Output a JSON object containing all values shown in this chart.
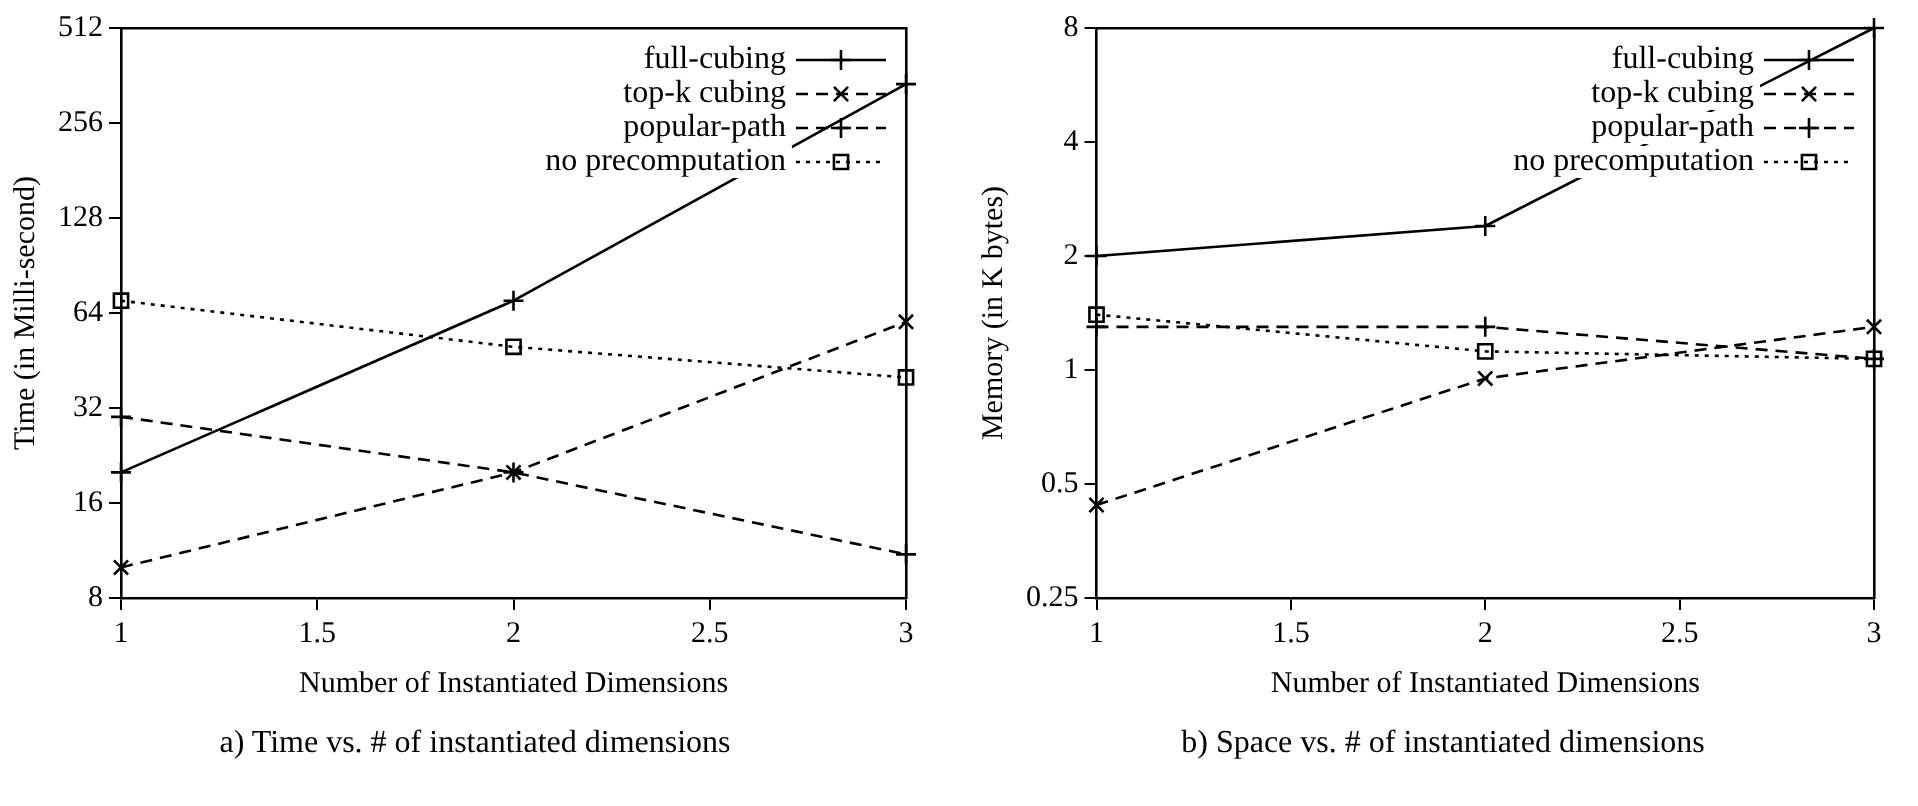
{
  "chart_data": [
    {
      "type": "line",
      "xlabel": "Number of Instantiated Dimensions",
      "ylabel": "Time (in Milli-second)",
      "x": [
        1,
        2,
        3
      ],
      "xlim": [
        1,
        3
      ],
      "xticks": [
        1,
        1.5,
        2,
        2.5,
        3
      ],
      "log": "y",
      "ylim": [
        8,
        512
      ],
      "yticks": [
        8,
        16,
        32,
        64,
        128,
        256,
        512
      ],
      "grid": false,
      "legend": "top right",
      "annotations": [
        "a) Time vs. # of instantiated dimensions"
      ],
      "series": [
        {
          "name": "full-cubing",
          "color": "#000000",
          "values": [
            20,
            70,
            340
          ],
          "line_style": "solid",
          "marker": "cross"
        },
        {
          "name": "top-k cubing",
          "color": "#000000",
          "values": [
            10,
            20,
            60
          ],
          "line_style": "dashed",
          "marker": "x"
        },
        {
          "name": "popular-path",
          "color": "#000000",
          "values": [
            30,
            20,
            11
          ],
          "line_style": "dashed",
          "marker": "cross"
        },
        {
          "name": "no precomputation",
          "color": "#000000",
          "values": [
            70,
            50,
            40
          ],
          "line_style": "dotted",
          "marker": "square"
        }
      ]
    },
    {
      "type": "line",
      "xlabel": "Number of Instantiated Dimensions",
      "ylabel": "Memory (in K bytes)",
      "x": [
        1,
        2,
        3
      ],
      "xlim": [
        1,
        3
      ],
      "xticks": [
        1,
        1.5,
        2,
        2.5,
        3
      ],
      "log": "y",
      "ylim": [
        0.25,
        8
      ],
      "yticks": [
        0.25,
        0.5,
        1,
        2,
        4,
        8
      ],
      "grid": false,
      "legend": "top right",
      "annotations": [
        "b) Space vs. # of instantiated dimensions"
      ],
      "series": [
        {
          "name": "full-cubing",
          "color": "#000000",
          "values": [
            2,
            2.4,
            8
          ],
          "line_style": "solid",
          "marker": "cross"
        },
        {
          "name": "top-k cubing",
          "color": "#000000",
          "values": [
            0.44,
            0.95,
            1.3
          ],
          "line_style": "dashed",
          "marker": "x"
        },
        {
          "name": "popular-path",
          "color": "#000000",
          "values": [
            1.3,
            1.3,
            1.07
          ],
          "line_style": "dashed",
          "marker": "cross"
        },
        {
          "name": "no precomputation",
          "color": "#000000",
          "values": [
            1.4,
            1.12,
            1.07
          ],
          "line_style": "dotted",
          "marker": "square"
        }
      ]
    }
  ]
}
